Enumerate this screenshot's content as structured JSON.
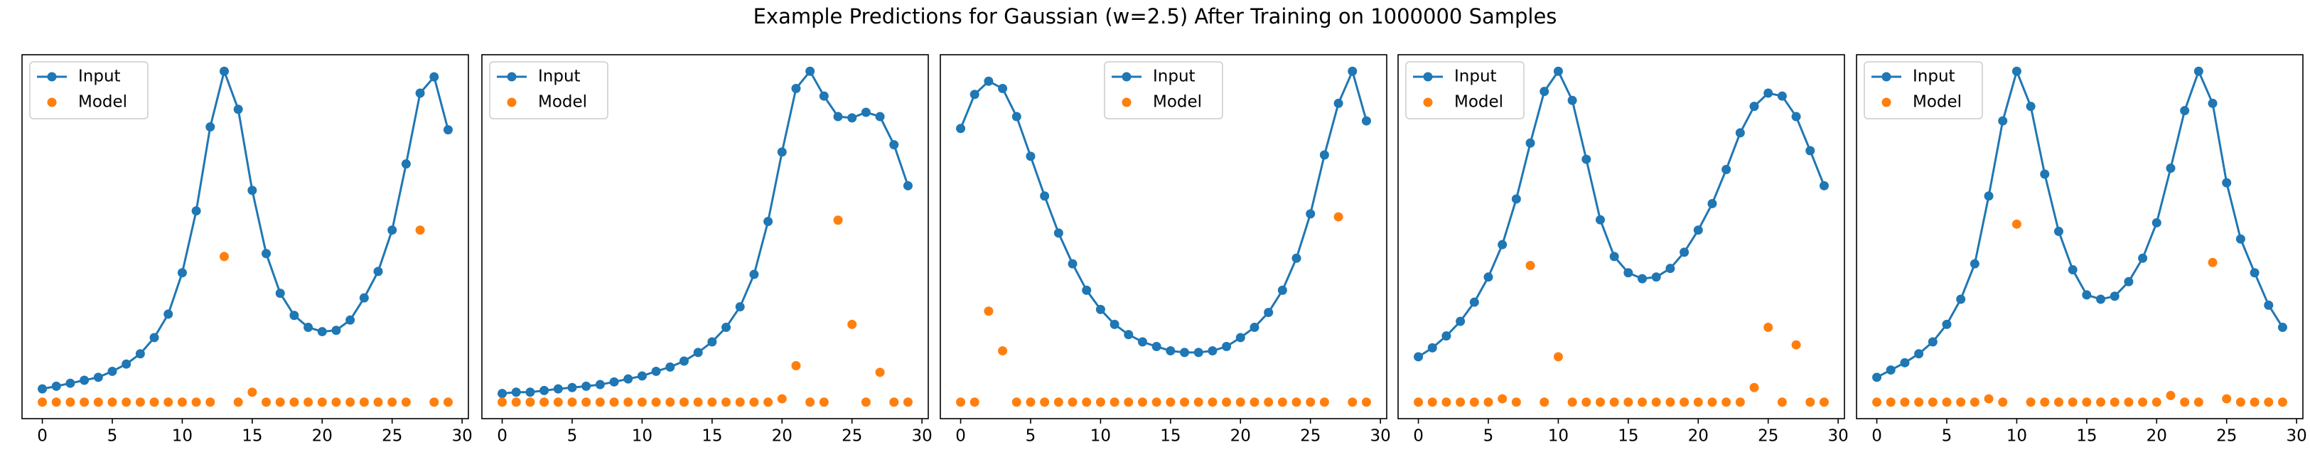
{
  "title": "Example Predictions for Gaussian (w=2.5) After Training on 1000000 Samples",
  "chart_data": [
    {
      "type": "line",
      "x": [
        0,
        1,
        2,
        3,
        4,
        5,
        6,
        7,
        8,
        9,
        10,
        11,
        12,
        13,
        14,
        15,
        16,
        17,
        18,
        19,
        20,
        21,
        22,
        23,
        24,
        25,
        26,
        27,
        28,
        29
      ],
      "xlim": [
        -1.45,
        30.45
      ],
      "ylim": [
        -0.05,
        1.05
      ],
      "xticks": [
        0,
        5,
        10,
        15,
        20,
        25,
        30
      ],
      "legend": "upper left",
      "series": [
        {
          "name": "Input",
          "type": "line",
          "color": "#1f77b4",
          "values": [
            0.04,
            0.048,
            0.057,
            0.066,
            0.075,
            0.093,
            0.115,
            0.146,
            0.195,
            0.266,
            0.391,
            0.578,
            0.832,
            1.0,
            0.885,
            0.64,
            0.449,
            0.329,
            0.262,
            0.226,
            0.213,
            0.217,
            0.248,
            0.315,
            0.395,
            0.52,
            0.72,
            0.934,
            0.983,
            0.823
          ]
        },
        {
          "name": "Model",
          "type": "scatter",
          "color": "#ff7f0e",
          "values": [
            0,
            0,
            0,
            0,
            0,
            0,
            0,
            0,
            0,
            0,
            0,
            0,
            0,
            0.44,
            0,
            0.03,
            0,
            0,
            0,
            0,
            0,
            0,
            0,
            0,
            0,
            0,
            0,
            0.52,
            0,
            0
          ]
        }
      ]
    },
    {
      "type": "line",
      "x": [
        0,
        1,
        2,
        3,
        4,
        5,
        6,
        7,
        8,
        9,
        10,
        11,
        12,
        13,
        14,
        15,
        16,
        17,
        18,
        19,
        20,
        21,
        22,
        23,
        24,
        25,
        26,
        27,
        28,
        29
      ],
      "xlim": [
        -1.45,
        30.45
      ],
      "ylim": [
        -0.05,
        1.05
      ],
      "xticks": [
        0,
        5,
        10,
        15,
        20,
        25,
        30
      ],
      "legend": "upper left",
      "series": [
        {
          "name": "Input",
          "type": "line",
          "color": "#1f77b4",
          "values": [
            0.026,
            0.03,
            0.03,
            0.035,
            0.04,
            0.044,
            0.048,
            0.053,
            0.061,
            0.07,
            0.079,
            0.093,
            0.106,
            0.124,
            0.15,
            0.182,
            0.226,
            0.288,
            0.386,
            0.546,
            0.756,
            0.948,
            1.0,
            0.925,
            0.863,
            0.859,
            0.876,
            0.863,
            0.778,
            0.654
          ]
        },
        {
          "name": "Model",
          "type": "scatter",
          "color": "#ff7f0e",
          "values": [
            0,
            0,
            0,
            0,
            0,
            0,
            0,
            0,
            0,
            0,
            0,
            0,
            0,
            0,
            0,
            0,
            0,
            0,
            0,
            0,
            0.01,
            0.11,
            0,
            0,
            0.55,
            0.235,
            0,
            0.09,
            0,
            0
          ]
        }
      ]
    },
    {
      "type": "line",
      "x": [
        0,
        1,
        2,
        3,
        4,
        5,
        6,
        7,
        8,
        9,
        10,
        11,
        12,
        13,
        14,
        15,
        16,
        17,
        18,
        19,
        20,
        21,
        22,
        23,
        24,
        25,
        26,
        27,
        28,
        29
      ],
      "xlim": [
        -1.45,
        30.45
      ],
      "ylim": [
        -0.05,
        1.05
      ],
      "xticks": [
        0,
        5,
        10,
        15,
        20,
        25,
        30
      ],
      "legend": "upper center",
      "series": [
        {
          "name": "Input",
          "type": "line",
          "color": "#1f77b4",
          "values": [
            0.827,
            0.93,
            0.97,
            0.948,
            0.863,
            0.743,
            0.623,
            0.511,
            0.418,
            0.338,
            0.28,
            0.235,
            0.204,
            0.182,
            0.168,
            0.155,
            0.15,
            0.15,
            0.155,
            0.168,
            0.195,
            0.226,
            0.271,
            0.338,
            0.435,
            0.569,
            0.747,
            0.903,
            1.0,
            0.85
          ]
        },
        {
          "name": "Model",
          "type": "scatter",
          "color": "#ff7f0e",
          "values": [
            0,
            0,
            0.275,
            0.155,
            0,
            0,
            0,
            0,
            0,
            0,
            0,
            0,
            0,
            0,
            0,
            0,
            0,
            0,
            0,
            0,
            0,
            0,
            0,
            0,
            0,
            0,
            0,
            0.56,
            0,
            0
          ]
        }
      ]
    },
    {
      "type": "line",
      "x": [
        0,
        1,
        2,
        3,
        4,
        5,
        6,
        7,
        8,
        9,
        10,
        11,
        12,
        13,
        14,
        15,
        16,
        17,
        18,
        19,
        20,
        21,
        22,
        23,
        24,
        25,
        26,
        27,
        28,
        29
      ],
      "xlim": [
        -1.45,
        30.45
      ],
      "ylim": [
        -0.05,
        1.05
      ],
      "xticks": [
        0,
        5,
        10,
        15,
        20,
        25,
        30
      ],
      "legend": "upper left",
      "series": [
        {
          "name": "Input",
          "type": "line",
          "color": "#1f77b4",
          "values": [
            0.137,
            0.164,
            0.2,
            0.244,
            0.302,
            0.378,
            0.476,
            0.614,
            0.783,
            0.939,
            1.0,
            0.912,
            0.734,
            0.551,
            0.44,
            0.391,
            0.373,
            0.378,
            0.404,
            0.453,
            0.52,
            0.6,
            0.703,
            0.814,
            0.894,
            0.934,
            0.925,
            0.863,
            0.76,
            0.654
          ]
        },
        {
          "name": "Model",
          "type": "scatter",
          "color": "#ff7f0e",
          "values": [
            0,
            0,
            0,
            0,
            0,
            0,
            0.01,
            0,
            0.413,
            0,
            0.137,
            0,
            0,
            0,
            0,
            0,
            0,
            0,
            0,
            0,
            0,
            0,
            0,
            0,
            0.044,
            0.226,
            0,
            0.173,
            0,
            0
          ]
        }
      ]
    },
    {
      "type": "line",
      "x": [
        0,
        1,
        2,
        3,
        4,
        5,
        6,
        7,
        8,
        9,
        10,
        11,
        12,
        13,
        14,
        15,
        16,
        17,
        18,
        19,
        20,
        21,
        22,
        23,
        24,
        25,
        26,
        27,
        28,
        29
      ],
      "xlim": [
        -1.45,
        30.45
      ],
      "ylim": [
        -0.05,
        1.05
      ],
      "xticks": [
        0,
        5,
        10,
        15,
        20,
        25,
        30
      ],
      "legend": "upper left",
      "series": [
        {
          "name": "Input",
          "type": "line",
          "color": "#1f77b4",
          "values": [
            0.075,
            0.097,
            0.119,
            0.146,
            0.182,
            0.235,
            0.311,
            0.418,
            0.623,
            0.85,
            1.0,
            0.894,
            0.689,
            0.516,
            0.4,
            0.324,
            0.311,
            0.32,
            0.364,
            0.435,
            0.542,
            0.707,
            0.881,
            1.0,
            0.903,
            0.663,
            0.493,
            0.391,
            0.293,
            0.226
          ]
        },
        {
          "name": "Model",
          "type": "scatter",
          "color": "#ff7f0e",
          "values": [
            0,
            0,
            0,
            0,
            0,
            0,
            0,
            0,
            0.01,
            0,
            0.538,
            0,
            0,
            0,
            0,
            0,
            0,
            0,
            0,
            0,
            0,
            0.02,
            0,
            0,
            0.422,
            0.01,
            0,
            0,
            0,
            0
          ]
        }
      ]
    }
  ]
}
